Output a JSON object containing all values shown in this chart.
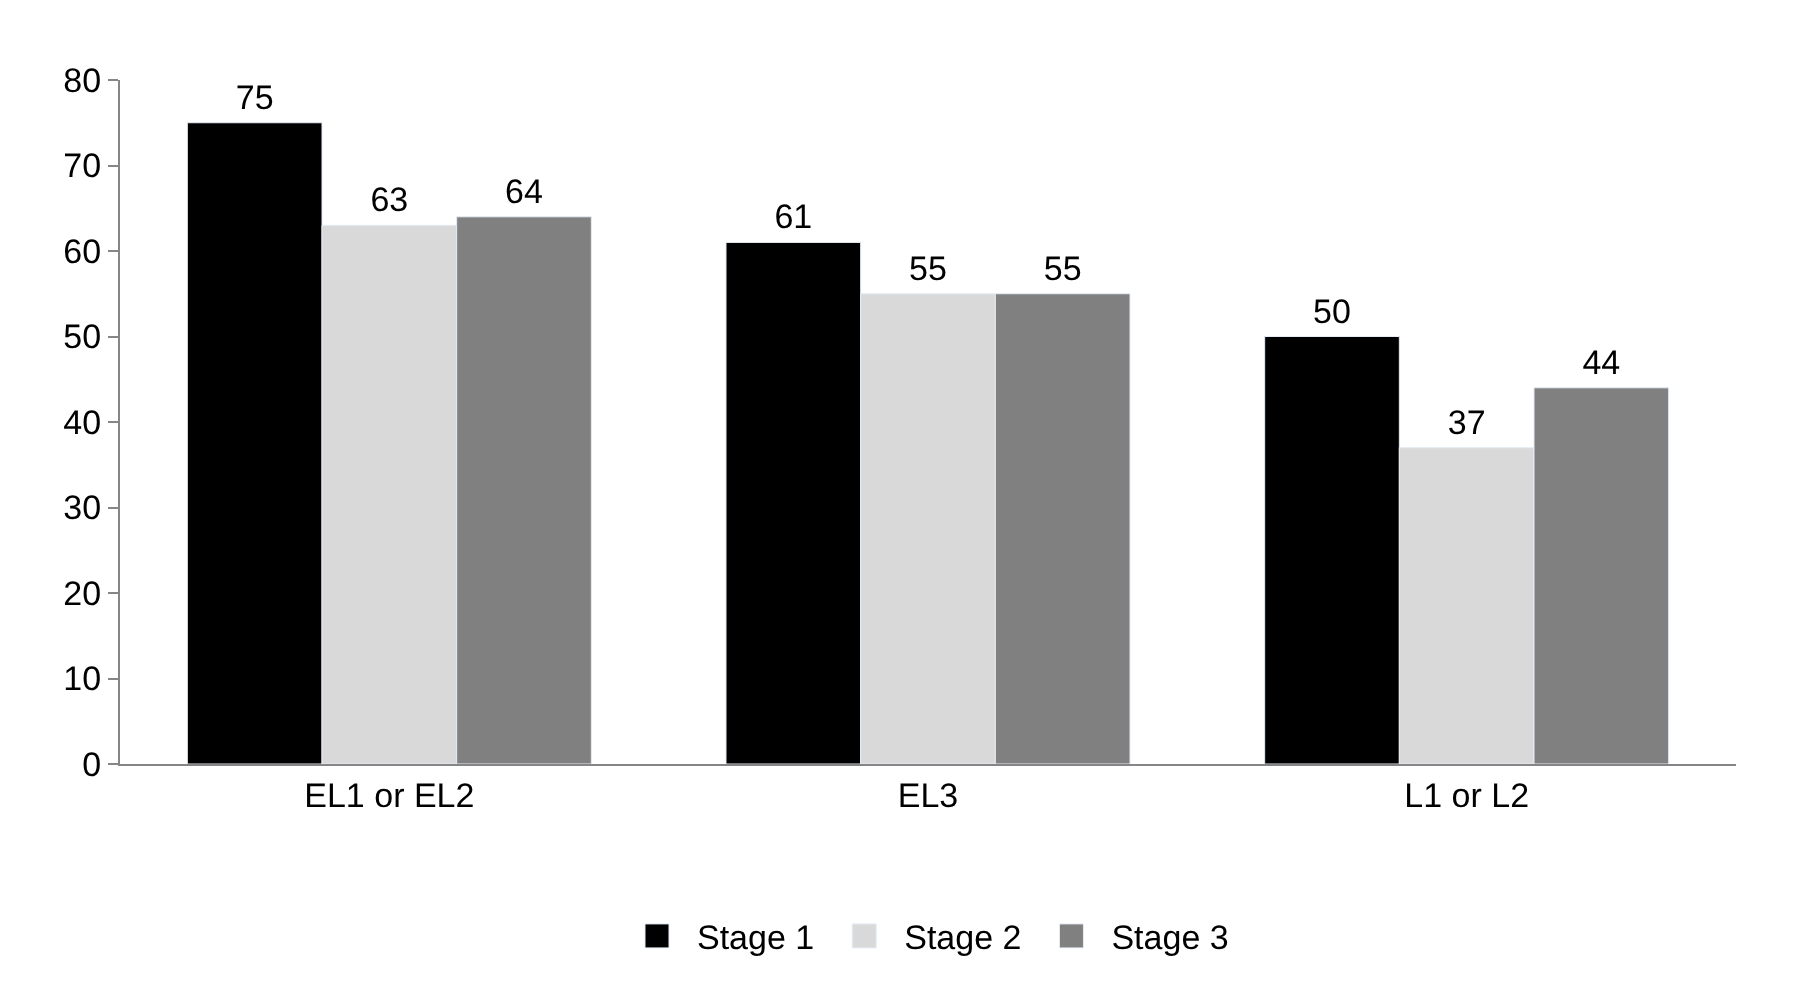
{
  "chart_data": {
    "type": "bar",
    "categories": [
      "EL1 or EL2",
      "EL3",
      "L1 or L2"
    ],
    "series": [
      {
        "name": "Stage 1",
        "color": "#000000",
        "values": [
          75,
          61,
          50
        ]
      },
      {
        "name": "Stage 2",
        "color": "#d9d9d9",
        "values": [
          63,
          55,
          37
        ]
      },
      {
        "name": "Stage 3",
        "color": "#808080",
        "values": [
          64,
          55,
          44
        ]
      }
    ],
    "ylim": [
      0,
      80
    ],
    "yticks": [
      0,
      10,
      20,
      30,
      40,
      50,
      60,
      70,
      80
    ],
    "grid": false,
    "legend": "bottom",
    "data_labels": true
  }
}
